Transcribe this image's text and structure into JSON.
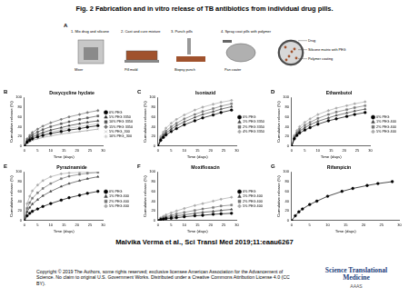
{
  "title": "Fig. 2 Fabrication and in vitro release of TB antibiotics from individual drug pills.",
  "citation": "Malvika Verma et al., Sci Transl Med 2019;11:eaau6267",
  "copyright": "Copyright © 2019 The Authors, some rights reserved; exclusive licensee American Association for the Advancement of Science. No claim to original U.S. Government Works. Distributed under a Creative Commons Attribution License 4.0 (CC BY).",
  "journal": "Science Translational Medicine",
  "publisher": "AAAS",
  "panel_a": {
    "panel": "A",
    "steps": [
      {
        "label": "1. Mix drug and silicone",
        "part": "Mixer"
      },
      {
        "label": "2. Cast and cure mixture",
        "part": "Pill mold"
      },
      {
        "label": "3. Punch pills",
        "part": "Biopsy punch"
      },
      {
        "label": "4. Spray coat pills with polymer",
        "part": "Pan coater"
      }
    ],
    "pill_parts": [
      "Drug",
      "Silicone matrix with PEG",
      "Polymer coating"
    ]
  },
  "chart_data": [
    {
      "panel": "B",
      "type": "line",
      "title": "Doxycycline hyclate",
      "x_label": "Time (days)",
      "y_label": "Cumulative release (%)",
      "x": [
        0,
        1,
        2,
        3,
        5,
        7,
        10,
        14,
        17,
        21,
        24,
        28
      ],
      "xlim": [
        0,
        30
      ],
      "xticks": [
        0,
        5,
        10,
        15,
        20,
        25,
        30
      ],
      "ylim": [
        0,
        100
      ],
      "yticks": [
        0,
        20,
        40,
        60,
        80,
        100
      ],
      "grid": false,
      "legend": "right",
      "line_style": "solid",
      "series": [
        {
          "name": "0% PEG",
          "color": "#000000",
          "marker": "circle",
          "values": [
            0,
            8,
            12,
            15,
            19,
            22,
            26,
            30,
            33,
            36,
            39,
            42
          ]
        },
        {
          "name": "5% PEG 3350",
          "color": "#333333",
          "marker": "triangle",
          "values": [
            0,
            10,
            15,
            19,
            24,
            28,
            33,
            38,
            42,
            46,
            49,
            52
          ]
        },
        {
          "name": "10% PEG 3350",
          "color": "#555555",
          "marker": "rect",
          "values": [
            0,
            12,
            18,
            23,
            29,
            34,
            40,
            46,
            50,
            55,
            58,
            62
          ]
        },
        {
          "name": "15% PEG 3350",
          "color": "#777777",
          "marker": "rectRot",
          "values": [
            0,
            15,
            22,
            28,
            35,
            41,
            48,
            55,
            60,
            65,
            69,
            73
          ]
        },
        {
          "name": "5% PEG_300",
          "color": "#999999",
          "marker": "crossRot",
          "values": [
            0,
            6,
            9,
            12,
            15,
            18,
            21,
            25,
            27,
            30,
            32,
            35
          ]
        },
        {
          "name": "10% PEG_300",
          "color": "#bbbbbb",
          "marker": "star",
          "values": [
            0,
            9,
            13,
            17,
            21,
            25,
            29,
            34,
            37,
            40,
            43,
            46
          ]
        }
      ]
    },
    {
      "panel": "C",
      "type": "line",
      "title": "Isoniazid",
      "x_label": "Time (days)",
      "y_label": "Cumulative release (%)",
      "x": [
        0,
        1,
        2,
        3,
        5,
        7,
        10,
        14,
        17,
        21,
        24,
        28
      ],
      "xlim": [
        0,
        30
      ],
      "xticks": [
        0,
        5,
        10,
        15,
        20,
        25,
        30
      ],
      "ylim": [
        0,
        100
      ],
      "yticks": [
        0,
        20,
        40,
        60,
        80,
        100
      ],
      "grid": false,
      "legend": "right",
      "line_style": "solid",
      "series": [
        {
          "name": "0% PEG",
          "color": "#000000",
          "marker": "circle",
          "values": [
            0,
            12,
            18,
            23,
            30,
            36,
            44,
            52,
            58,
            64,
            69,
            74
          ]
        },
        {
          "name": "1% PEG 3350",
          "color": "#444444",
          "marker": "triangle",
          "values": [
            0,
            14,
            21,
            27,
            35,
            42,
            50,
            59,
            65,
            71,
            76,
            81
          ]
        },
        {
          "name": "2% PEG 3350",
          "color": "#777777",
          "marker": "rect",
          "values": [
            0,
            16,
            24,
            31,
            40,
            47,
            56,
            65,
            71,
            77,
            82,
            87
          ]
        },
        {
          "name": "4% PEG 3350",
          "color": "#aaaaaa",
          "marker": "rectRot",
          "values": [
            0,
            20,
            29,
            37,
            47,
            55,
            64,
            74,
            80,
            86,
            90,
            94
          ]
        }
      ]
    },
    {
      "panel": "D",
      "type": "line",
      "title": "Ethambutol",
      "x_label": "Time (days)",
      "y_label": "Cumulative release (%)",
      "x": [
        0,
        1,
        2,
        3,
        5,
        7,
        10,
        14,
        17,
        21,
        24,
        28
      ],
      "xlim": [
        0,
        30
      ],
      "xticks": [
        0,
        5,
        10,
        15,
        20,
        25,
        30
      ],
      "ylim": [
        0,
        100
      ],
      "yticks": [
        0,
        20,
        40,
        60,
        80,
        100
      ],
      "grid": false,
      "legend": "right",
      "line_style": "solid",
      "series": [
        {
          "name": "0% PEG",
          "color": "#000000",
          "marker": "circle",
          "values": [
            0,
            15,
            22,
            27,
            33,
            38,
            45,
            52,
            56,
            61,
            65,
            69
          ]
        },
        {
          "name": "1% PEG 400",
          "color": "#444444",
          "marker": "triangle",
          "values": [
            0,
            17,
            25,
            31,
            38,
            44,
            51,
            58,
            63,
            68,
            72,
            76
          ]
        },
        {
          "name": "2% PEG 400",
          "color": "#777777",
          "marker": "rect",
          "values": [
            0,
            19,
            28,
            35,
            43,
            49,
            57,
            65,
            70,
            75,
            79,
            83
          ]
        },
        {
          "name": "5% PEG 400",
          "color": "#aaaaaa",
          "marker": "rectRot",
          "values": [
            0,
            22,
            32,
            40,
            49,
            56,
            65,
            73,
            78,
            83,
            87,
            91
          ]
        }
      ]
    },
    {
      "panel": "E",
      "type": "line",
      "title": "Pyrazinamide",
      "x_label": "Time (days)",
      "y_label": "Cumulative release (%)",
      "x": [
        0,
        1,
        2,
        3,
        5,
        7,
        10,
        14,
        17,
        21,
        24,
        28
      ],
      "xlim": [
        0,
        30
      ],
      "xticks": [
        0,
        5,
        10,
        15,
        20,
        25,
        30
      ],
      "ylim": [
        0,
        100
      ],
      "yticks": [
        0,
        20,
        40,
        60,
        80,
        100
      ],
      "grid": false,
      "legend": "right",
      "line_style": "solid",
      "series": [
        {
          "name": "0% PEG",
          "color": "#000000",
          "marker": "circle",
          "values": [
            0,
            10,
            15,
            19,
            24,
            29,
            35,
            42,
            47,
            52,
            56,
            60
          ]
        },
        {
          "name": "1% PEG 400",
          "color": "#444444",
          "marker": "triangle",
          "values": [
            0,
            18,
            27,
            34,
            43,
            51,
            60,
            70,
            76,
            82,
            86,
            90
          ]
        },
        {
          "name": "2% PEG 400",
          "color": "#777777",
          "marker": "rect",
          "values": [
            0,
            25,
            37,
            46,
            57,
            66,
            76,
            86,
            91,
            95,
            97,
            99
          ]
        },
        {
          "name": "5% PEG 400",
          "color": "#aaaaaa",
          "marker": "rectRot",
          "values": [
            0,
            35,
            50,
            61,
            73,
            82,
            90,
            96,
            98,
            99,
            100,
            100
          ]
        }
      ]
    },
    {
      "panel": "F",
      "type": "line",
      "title": "Moxifloxacin",
      "x_label": "Time (days)",
      "y_label": "Cumulative release (%)",
      "x": [
        0,
        1,
        2,
        3,
        5,
        7,
        10,
        14,
        17,
        21,
        24,
        28
      ],
      "xlim": [
        0,
        30
      ],
      "xticks": [
        0,
        5,
        10,
        15,
        20,
        25,
        30
      ],
      "ylim": [
        0,
        100
      ],
      "yticks": [
        0,
        20,
        40,
        60,
        80,
        100
      ],
      "grid": false,
      "legend": "right",
      "line_style": "solid",
      "series": [
        {
          "name": "0% PEG",
          "color": "#000000",
          "marker": "circle",
          "values": [
            0,
            2,
            3,
            4,
            5,
            6,
            8,
            10,
            11,
            13,
            14,
            15
          ]
        },
        {
          "name": "1% PEG 400",
          "color": "#444444",
          "marker": "triangle",
          "values": [
            0,
            3,
            4,
            6,
            8,
            10,
            12,
            15,
            17,
            19,
            21,
            23
          ]
        },
        {
          "name": "2% PEG 400",
          "color": "#777777",
          "marker": "rect",
          "values": [
            0,
            4,
            6,
            8,
            11,
            14,
            17,
            21,
            24,
            27,
            30,
            32
          ]
        },
        {
          "name": "5% PEG 400",
          "color": "#aaaaaa",
          "marker": "rectRot",
          "values": [
            0,
            6,
            9,
            12,
            16,
            20,
            25,
            31,
            35,
            40,
            44,
            48
          ]
        }
      ]
    },
    {
      "panel": "G",
      "type": "line",
      "title": "Rifampicin",
      "x_label": "Time (days)",
      "y_label": "Cumulative release (%)",
      "x": [
        0,
        1,
        2,
        3,
        5,
        7,
        10,
        14,
        17,
        21,
        24,
        28
      ],
      "xlim": [
        0,
        30
      ],
      "xticks": [
        0,
        5,
        10,
        15,
        20,
        25,
        30
      ],
      "ylim": [
        0,
        100
      ],
      "yticks": [
        0,
        20,
        40,
        60,
        80,
        100
      ],
      "grid": false,
      "line_style": "solid",
      "series": [
        {
          "color": "#000000",
          "marker": "circle",
          "values": [
            0,
            10,
            18,
            24,
            33,
            40,
            50,
            60,
            66,
            72,
            76,
            80
          ]
        }
      ]
    }
  ]
}
